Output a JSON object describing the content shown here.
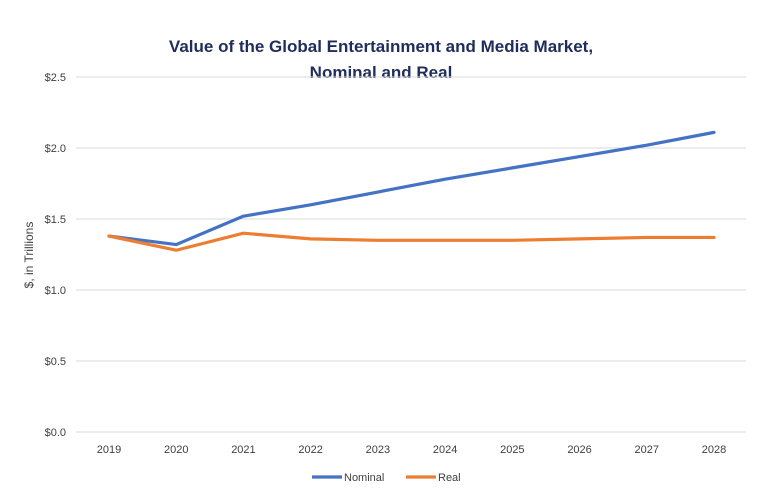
{
  "chart_data": {
    "type": "line",
    "title_line1": "Value of the Global Entertainment and Media Market,",
    "title_line2": "Nominal and Real",
    "xlabel": "",
    "ylabel": "$, in Trillions",
    "categories": [
      "2019",
      "2020",
      "2021",
      "2022",
      "2023",
      "2024",
      "2025",
      "2026",
      "2027",
      "2028"
    ],
    "ylim": [
      0,
      2.5
    ],
    "yticks": [
      0,
      0.5,
      1.0,
      1.5,
      2.0,
      2.5
    ],
    "ytick_labels": [
      "$0.0",
      "$0.5",
      "$1.0",
      "$1.5",
      "$2.0",
      "$2.5"
    ],
    "grid": true,
    "legend_position": "bottom",
    "series": [
      {
        "name": "Nominal",
        "color": "#4472C4",
        "values": [
          1.38,
          1.32,
          1.52,
          1.6,
          1.69,
          1.78,
          1.86,
          1.94,
          2.02,
          2.11
        ]
      },
      {
        "name": "Real",
        "color": "#ED7D31",
        "values": [
          1.38,
          1.28,
          1.4,
          1.36,
          1.35,
          1.35,
          1.35,
          1.36,
          1.37,
          1.37
        ]
      }
    ]
  }
}
